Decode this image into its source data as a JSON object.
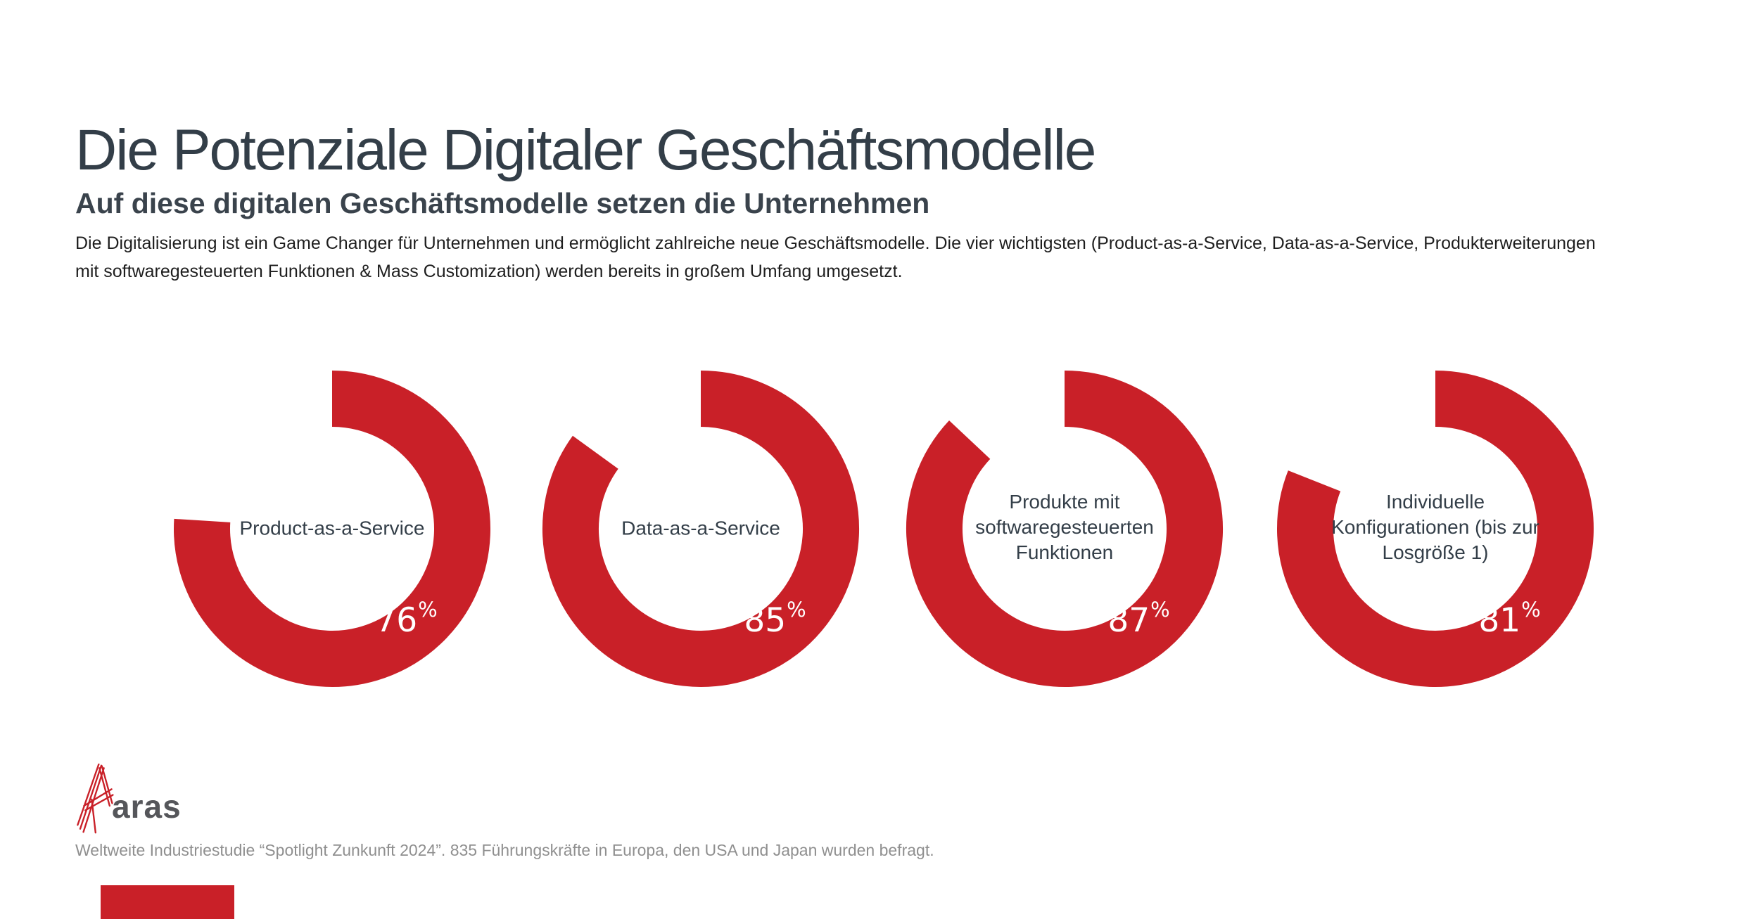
{
  "page": {
    "title": "Die Potenziale Digitaler Geschäftsmodelle",
    "subtitle": "Auf diese digitalen Geschäftsmodelle setzen die Unternehmen",
    "body_line1": "Die Digitalisierung ist ein Game Changer für Unternehmen und ermöglicht zahlreiche neue Geschäftsmodelle. Die vier wichtigsten (Product-as-a-Service, Data-as-a-Service, Produkterweiterungen",
    "body_line2": "mit softwaregesteuerten Funktionen & Mass Customization) werden bereits in großem Umfang umgesetzt.",
    "footer": "Weltweite Industriestudie “Spotlight Zunkunft 2024”. 835 Führungskräfte in Europa, den USA und Japan wurden befragt."
  },
  "logo": {
    "text": "aras"
  },
  "colors": {
    "red": "#c92028",
    "heading": "#333e48",
    "body_text": "#1e1e1e",
    "footer_gray": "#8f8f8f",
    "logo_gray": "#55565a",
    "value_text": "#ffffff"
  },
  "donuts": [
    {
      "label": "Product-as-a-Service",
      "value": 76,
      "display": "76",
      "unit": "%"
    },
    {
      "label": "Data-as-a-Service",
      "value": 85,
      "display": "85",
      "unit": "%"
    },
    {
      "label": "Produkte mit softwaregesteuerten Funktionen",
      "value": 87,
      "display": "87",
      "unit": "%"
    },
    {
      "label": "Individuelle Konfigurationen (bis zur Losgröße 1)",
      "value": 81,
      "display": "81",
      "unit": "%"
    }
  ],
  "chart_data": {
    "type": "pie",
    "variant": "donut-gauge",
    "title": "Die Potenziale Digitaler Geschäftsmodelle",
    "subtitle": "Auf diese digitalen Geschäftsmodelle setzen die Unternehmen",
    "categories": [
      "Product-as-a-Service",
      "Data-as-a-Service",
      "Produkte mit softwaregesteuerten Funktionen",
      "Individuelle Konfigurationen (bis zur Losgröße 1)"
    ],
    "values": [
      76,
      85,
      87,
      81
    ],
    "unit": "%",
    "ring_color": "#c92028",
    "start_angle_deg": 0,
    "direction": "clockwise",
    "legend_position": "inside-donut",
    "source_note": "Weltweite Industriestudie “Spotlight Zunkunft 2024”. 835 Führungskräfte in Europa, den USA und Japan wurden befragt."
  }
}
